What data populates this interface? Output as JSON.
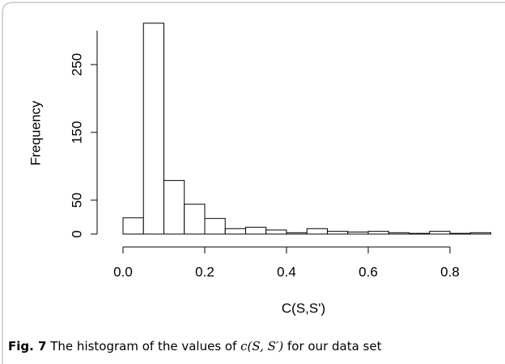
{
  "chart_data": {
    "type": "histogram",
    "x_label": "C(S,S')",
    "y_label": "Frequency",
    "bins": [
      0,
      0.05,
      0.1,
      0.15,
      0.2,
      0.25,
      0.3,
      0.35,
      0.4,
      0.45,
      0.5,
      0.55,
      0.6,
      0.65,
      0.7,
      0.75,
      0.8,
      0.85,
      0.9
    ],
    "values": [
      24,
      311,
      79,
      44,
      23,
      8,
      10,
      6,
      2,
      8,
      4,
      3,
      4,
      2,
      1,
      4,
      1,
      2
    ],
    "color": "#ffffff",
    "xlim": [
      0,
      0.9
    ],
    "xticks": [
      {
        "value": 0,
        "label": "0.0"
      },
      0.2,
      0.4,
      0.6,
      0.8
    ],
    "ylim": [
      0,
      300
    ],
    "yticks": [
      0,
      50,
      150,
      250
    ]
  },
  "caption": {
    "label": "Fig. 7",
    "text_before": "The histogram of the values of ",
    "math": "c(S, S′)",
    "text_after": " for our data set"
  }
}
